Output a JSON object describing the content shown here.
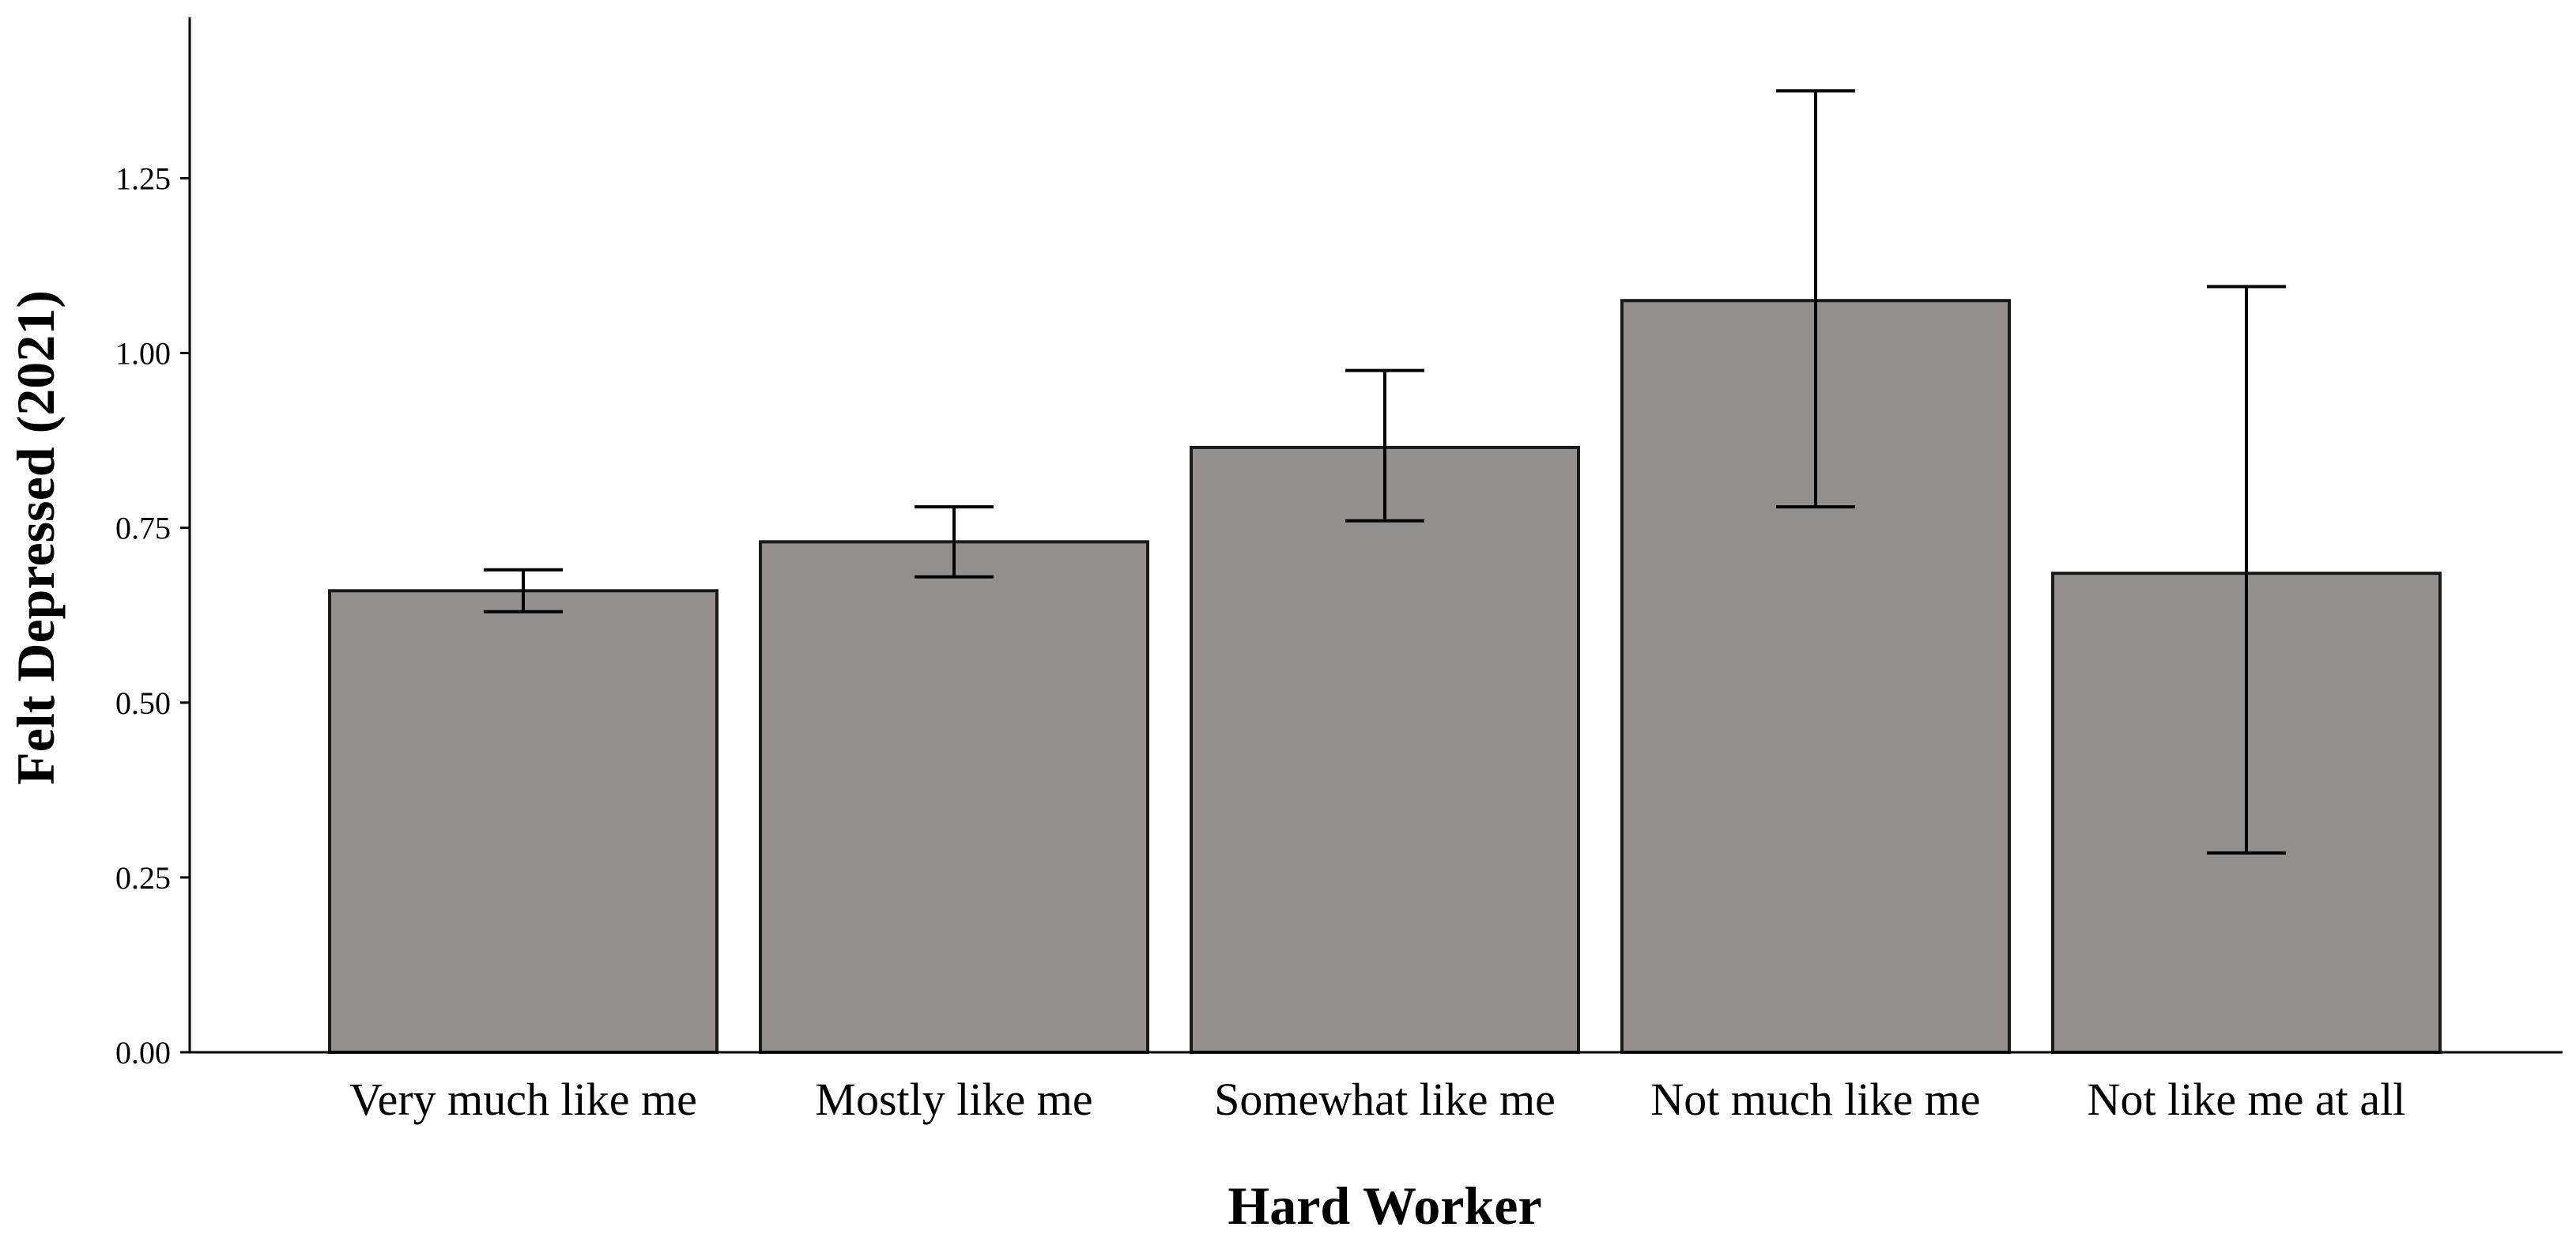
{
  "chart_data": {
    "type": "bar",
    "title": "",
    "xlabel": "Hard Worker",
    "ylabel": "Felt Depressed (2021)",
    "categories": [
      "Very much like me",
      "Mostly like me",
      "Somewhat like me",
      "Not much like me",
      "Not like me at all"
    ],
    "values": [
      0.66,
      0.73,
      0.865,
      1.075,
      0.685
    ],
    "error_low": [
      0.63,
      0.68,
      0.76,
      0.78,
      0.285
    ],
    "error_high": [
      0.69,
      0.78,
      0.975,
      1.375,
      1.095
    ],
    "ylim": [
      0,
      1.48
    ],
    "yticks": [
      0.0,
      0.25,
      0.5,
      0.75,
      1.0,
      1.25
    ],
    "ytick_labels": [
      "0.00",
      "0.25",
      "0.50",
      "0.75",
      "1.00",
      "1.25"
    ],
    "grid": false,
    "bar_color": "#938f8e",
    "bar_edge_color": "#1a1a1a",
    "error_bar_color": "#000000"
  }
}
